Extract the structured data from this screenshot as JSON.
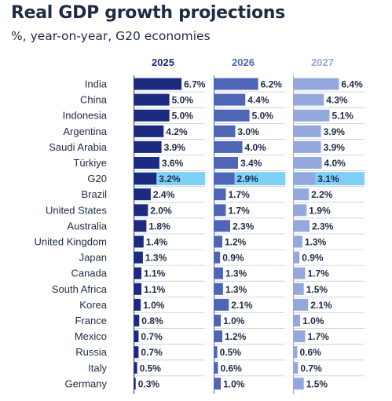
{
  "title": "Real GDP growth projections",
  "subtitle": "%, year-on-year, G20 economies",
  "colors": {
    "series": [
      "#1c2a80",
      "#4f65b6",
      "#94a8de"
    ],
    "header": [
      "#1c2a80",
      "#4f65b6",
      "#94a8de"
    ],
    "highlight": "#7fd0f7",
    "row_divider": "#c7ccd8",
    "text": "#1f2a44"
  },
  "chart_data": {
    "type": "bar",
    "title": "Real GDP growth projections",
    "subtitle": "%, year-on-year, G20 economies",
    "orientation": "horizontal",
    "layout": "small-multiples",
    "value_suffix": "%",
    "xlim": [
      0,
      7
    ],
    "grid": false,
    "highlight_category": "G20",
    "categories": [
      "India",
      "China",
      "Indonesia",
      "Argentina",
      "Saudi Arabia",
      "Türkiye",
      "G20",
      "Brazil",
      "United States",
      "Australia",
      "United Kingdom",
      "Japan",
      "Canada",
      "South Africa",
      "Korea",
      "France",
      "Mexico",
      "Russia",
      "Italy",
      "Germany"
    ],
    "series": [
      {
        "name": "2025",
        "values": [
          6.7,
          5.0,
          5.0,
          4.2,
          3.9,
          3.6,
          3.2,
          2.4,
          2.0,
          1.8,
          1.4,
          1.3,
          1.1,
          1.1,
          1.0,
          0.8,
          0.7,
          0.7,
          0.5,
          0.3
        ]
      },
      {
        "name": "2026",
        "values": [
          6.2,
          4.4,
          5.0,
          3.0,
          4.0,
          3.4,
          2.9,
          1.7,
          1.7,
          2.3,
          1.2,
          0.9,
          1.3,
          1.3,
          2.1,
          1.0,
          1.2,
          0.5,
          0.6,
          1.0
        ]
      },
      {
        "name": "2027",
        "values": [
          6.4,
          4.3,
          5.1,
          3.9,
          3.9,
          4.0,
          3.1,
          2.2,
          1.9,
          2.3,
          1.3,
          0.9,
          1.7,
          1.5,
          2.1,
          1.0,
          1.7,
          0.6,
          0.7,
          1.5
        ]
      }
    ]
  }
}
